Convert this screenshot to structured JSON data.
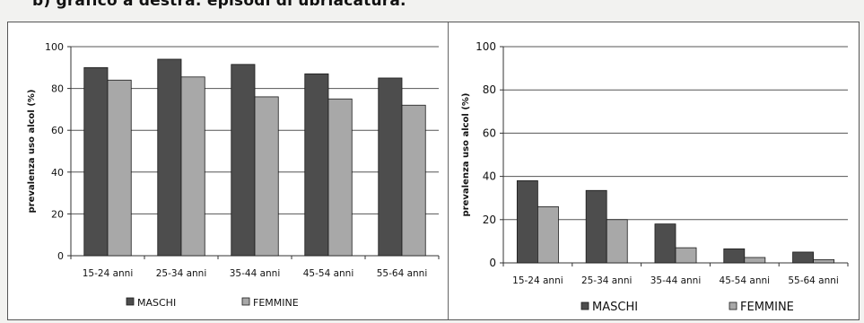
{
  "heading": "b) grafico a destra: episodi di ubriacatura.",
  "colors": {
    "male": "#4d4d4d",
    "female": "#a8a8a8",
    "grid": "#555555"
  },
  "chart_data": [
    {
      "type": "bar",
      "title": "",
      "xlabel": "",
      "ylabel": "prevalenza uso alcol (%)",
      "ylim": [
        0,
        100
      ],
      "yticks": [
        0,
        20,
        40,
        60,
        80,
        100
      ],
      "grid": true,
      "legend_position": "bottom",
      "categories": [
        "15-24 anni",
        "25-34 anni",
        "35-44 anni",
        "45-54 anni",
        "55-64 anni"
      ],
      "series": [
        {
          "name": "MASCHI",
          "values": [
            90,
            94,
            91.5,
            87,
            85
          ]
        },
        {
          "name": "FEMMINE",
          "values": [
            84,
            85.5,
            76,
            75,
            72
          ]
        }
      ]
    },
    {
      "type": "bar",
      "title": "",
      "xlabel": "",
      "ylabel": "prevalenza uso alcol (%)",
      "ylim": [
        0,
        100
      ],
      "yticks": [
        0,
        20,
        40,
        60,
        80,
        100
      ],
      "grid": true,
      "legend_position": "bottom",
      "categories": [
        "15-24 anni",
        "25-34 anni",
        "35-44 anni",
        "45-54 anni",
        "55-64 anni"
      ],
      "series": [
        {
          "name": "MASCHI",
          "values": [
            38,
            33.5,
            18,
            6.5,
            5
          ]
        },
        {
          "name": "FEMMINE",
          "values": [
            26,
            20,
            7,
            2.5,
            1.5
          ]
        }
      ]
    }
  ]
}
